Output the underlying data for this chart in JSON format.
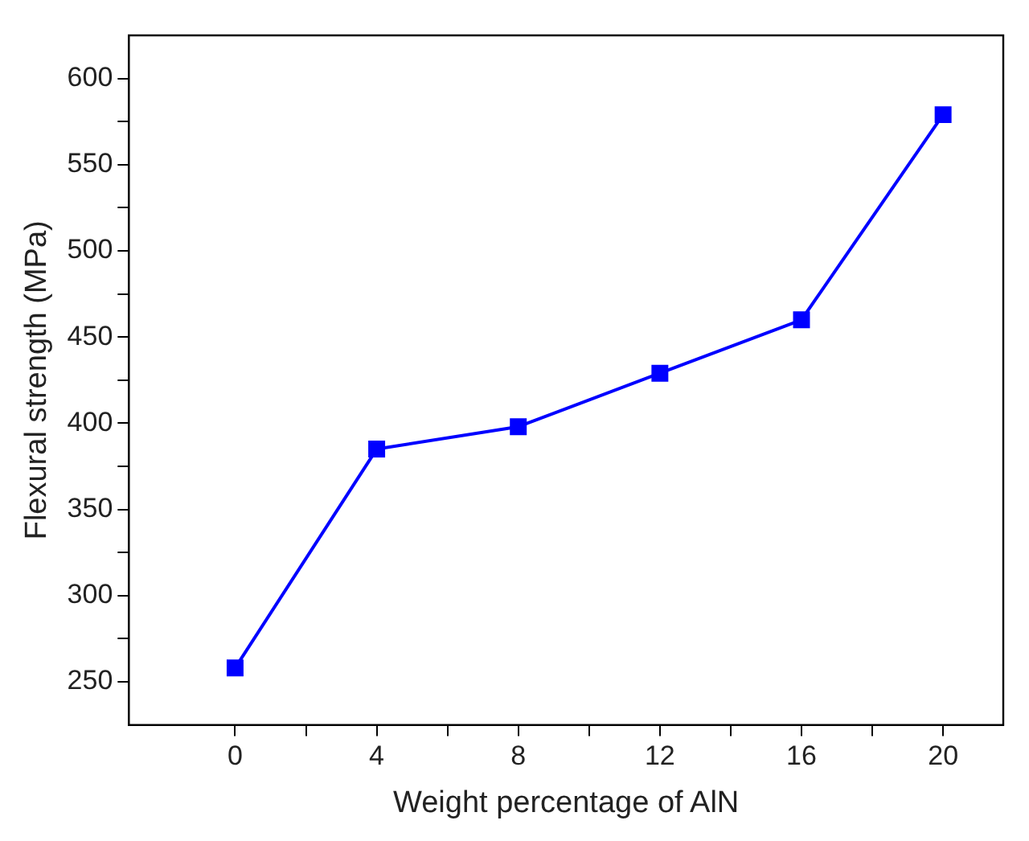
{
  "chart_data": {
    "type": "line",
    "xlabel": "Weight percentage of AlN",
    "ylabel": "Flexural strength (MPa)",
    "x": [
      0,
      4,
      8,
      12,
      16,
      20
    ],
    "series": [
      {
        "color": "#0000ff",
        "values": [
          258,
          385,
          398,
          429,
          460,
          579
        ]
      }
    ],
    "xlim": [
      -3,
      21.7
    ],
    "ylim": [
      225,
      625
    ],
    "xticks": [
      0,
      {
        "value": 2,
        "label": null
      },
      4,
      {
        "value": 6,
        "label": null
      },
      8,
      {
        "value": 10,
        "label": null
      },
      12,
      {
        "value": 14,
        "label": null
      },
      16,
      {
        "value": 18,
        "label": null
      },
      20
    ],
    "yticks": [
      250,
      {
        "value": 275,
        "label": null
      },
      300,
      {
        "value": 325,
        "label": null
      },
      350,
      {
        "value": 375,
        "label": null
      },
      400,
      {
        "value": 425,
        "label": null
      },
      450,
      {
        "value": 475,
        "label": null
      },
      500,
      {
        "value": 525,
        "label": null
      },
      550,
      {
        "value": 575,
        "label": null
      },
      600
    ],
    "grid": false,
    "legend": false,
    "marker": "square",
    "line_style": "solid"
  }
}
